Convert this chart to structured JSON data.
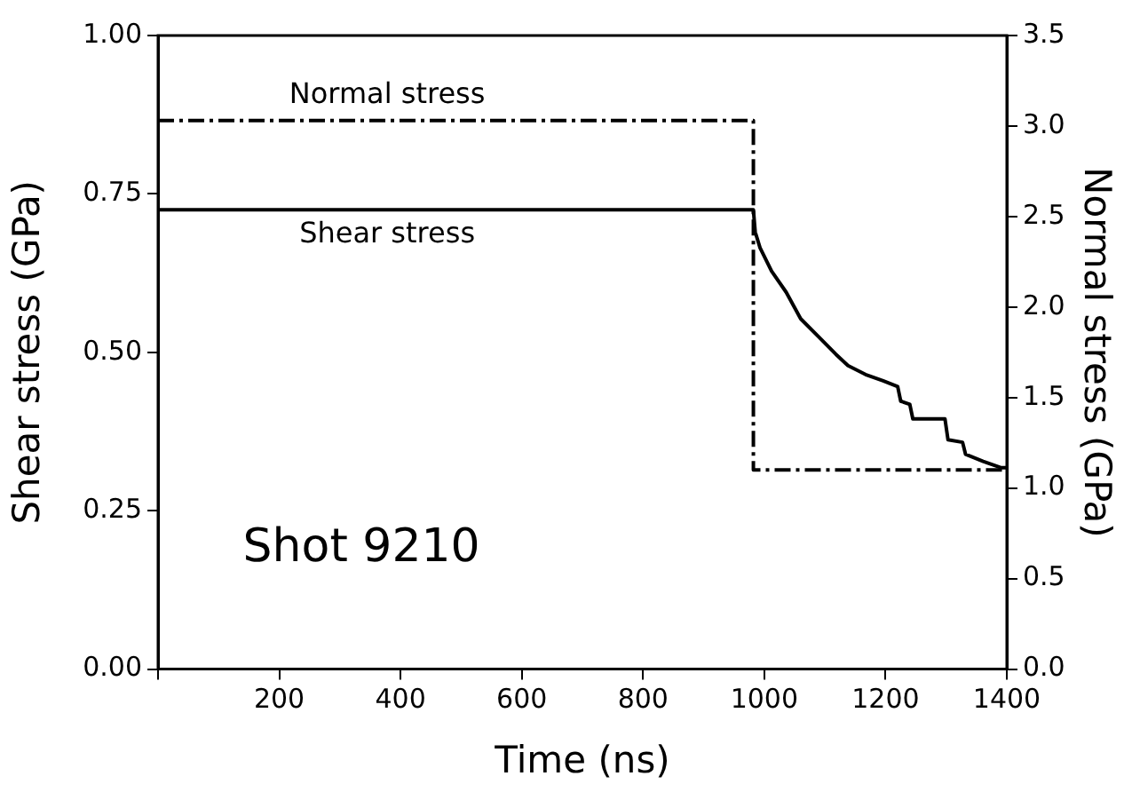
{
  "chart_data": {
    "type": "line",
    "xlabel": "Time (ns)",
    "ylabel": "Shear stress (GPa)",
    "y2label": "Normal stress (GPa)",
    "xlim": [
      0,
      1400
    ],
    "xticks": [
      {
        "value": 0,
        "label": null
      },
      200,
      400,
      600,
      800,
      1000,
      1200,
      1400
    ],
    "ylim": [
      0,
      1
    ],
    "yticks": [
      {
        "value": 0,
        "label": "0.00"
      },
      {
        "value": 0.25,
        "label": "0.25"
      },
      {
        "value": 0.5,
        "label": "0.50"
      },
      {
        "value": 0.75,
        "label": "0.75"
      },
      {
        "value": 1,
        "label": "1.00"
      }
    ],
    "y2lim": [
      0,
      3.5
    ],
    "y2ticks": [
      {
        "value": 0,
        "label": "0.0"
      },
      {
        "value": 0.5,
        "label": "0.5"
      },
      {
        "value": 1,
        "label": "1.0"
      },
      {
        "value": 1.5,
        "label": "1.5"
      },
      {
        "value": 2,
        "label": "2.0"
      },
      {
        "value": 2.5,
        "label": "2.5"
      },
      {
        "value": 3,
        "label": "3.0"
      },
      {
        "value": 3.5,
        "label": "3.5"
      }
    ],
    "grid": false,
    "legend": false,
    "marker": "none",
    "annotations": [
      "Shot 9210"
    ],
    "series": [
      {
        "name": "Normal stress",
        "color": "#000000",
        "axis": "y2",
        "line_style": "dashed",
        "x": [
          0,
          982,
          982,
          1400
        ],
        "values": [
          3.03,
          3.03,
          1.1,
          1.1
        ]
      },
      {
        "name": "Shear stress",
        "color": "#000000",
        "line_style": "solid",
        "x": [
          0,
          982,
          985,
          993,
          1012,
          1036,
          1060,
          1089,
          1118,
          1138,
          1167,
          1196,
          1220,
          1225,
          1240,
          1245,
          1298,
          1303,
          1327,
          1332,
          1361,
          1390,
          1400
        ],
        "values": [
          0.725,
          0.725,
          0.69,
          0.665,
          0.628,
          0.595,
          0.553,
          0.525,
          0.497,
          0.479,
          0.465,
          0.455,
          0.446,
          0.423,
          0.418,
          0.395,
          0.395,
          0.362,
          0.358,
          0.339,
          0.328,
          0.318,
          0.318
        ]
      }
    ]
  }
}
